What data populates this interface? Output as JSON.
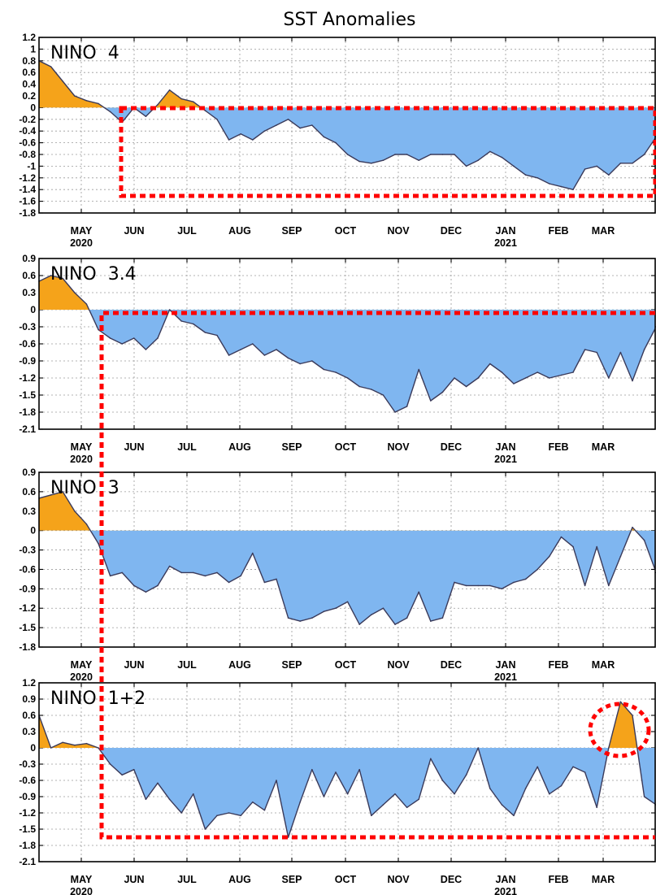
{
  "title": "SST Anomalies",
  "colors": {
    "positive_fill": "#f5a31a",
    "negative_fill": "#7fb6f0",
    "line": "#3a3a5a",
    "highlight": "#ff0000"
  },
  "x_axis": {
    "months": [
      "MAY",
      "JUN",
      "JUL",
      "AUG",
      "SEP",
      "OCT",
      "NOV",
      "DEC",
      "JAN",
      "FEB",
      "MAR"
    ],
    "years": [
      {
        "month": "MAY",
        "label": "2020"
      },
      {
        "month": "JAN",
        "label": "2021"
      }
    ]
  },
  "chart_data": [
    {
      "type": "area",
      "label": "NINO  4",
      "yticks": [
        "1.2",
        "1",
        "0.8",
        "0.6",
        "0.4",
        "0.2",
        "0",
        "-0.2",
        "-0.4",
        "-0.6",
        "-0.8",
        "-1",
        "-1.2",
        "-1.4",
        "-1.6",
        "-1.8"
      ],
      "ylim": [
        -1.8,
        1.2
      ],
      "x_unit": "weeks from 1 Apr 2020",
      "x": [
        0,
        1,
        2,
        3,
        4,
        5,
        6,
        7,
        8,
        9,
        10,
        11,
        12,
        13,
        14,
        15,
        16,
        17,
        18,
        19,
        20,
        21,
        22,
        23,
        24,
        25,
        26,
        27,
        28,
        29,
        30,
        31,
        32,
        33,
        34,
        35,
        36,
        37,
        38,
        39,
        40,
        41,
        42,
        43,
        44,
        45,
        46,
        47,
        48,
        49,
        50,
        51,
        52
      ],
      "values": [
        0.8,
        0.7,
        0.45,
        0.2,
        0.12,
        0.07,
        -0.07,
        -0.25,
        0,
        -0.15,
        0.05,
        0.3,
        0.15,
        0.1,
        -0.05,
        -0.2,
        -0.55,
        -0.45,
        -0.55,
        -0.4,
        -0.3,
        -0.2,
        -0.35,
        -0.3,
        -0.5,
        -0.6,
        -0.8,
        -0.92,
        -0.95,
        -0.9,
        -0.8,
        -0.8,
        -0.9,
        -0.8,
        -0.8,
        -0.8,
        -1.0,
        -0.9,
        -0.75,
        -0.85,
        -1.0,
        -1.15,
        -1.2,
        -1.3,
        -1.35,
        -1.4,
        -1.05,
        -1.0,
        -1.15,
        -0.95,
        -0.95,
        -0.8,
        -0.5
      ]
    },
    {
      "type": "area",
      "label": "NINO  3.4",
      "yticks": [
        "0.9",
        "0.6",
        "0.3",
        "0",
        "-0.3",
        "-0.6",
        "-0.9",
        "-1.2",
        "-1.5",
        "-1.8",
        "-2.1"
      ],
      "ylim": [
        -2.1,
        0.9
      ],
      "x_unit": "weeks from 1 Apr 2020",
      "x": [
        0,
        1,
        2,
        3,
        4,
        5,
        6,
        7,
        8,
        9,
        10,
        11,
        12,
        13,
        14,
        15,
        16,
        17,
        18,
        19,
        20,
        21,
        22,
        23,
        24,
        25,
        26,
        27,
        28,
        29,
        30,
        31,
        32,
        33,
        34,
        35,
        36,
        37,
        38,
        39,
        40,
        41,
        42,
        43,
        44,
        45,
        46,
        47,
        48,
        49,
        50,
        51,
        52
      ],
      "values": [
        0.5,
        0.6,
        0.55,
        0.3,
        0.1,
        -0.35,
        -0.5,
        -0.6,
        -0.5,
        -0.7,
        -0.5,
        0.0,
        -0.2,
        -0.25,
        -0.4,
        -0.45,
        -0.8,
        -0.7,
        -0.6,
        -0.8,
        -0.7,
        -0.85,
        -0.95,
        -0.9,
        -1.05,
        -1.1,
        -1.2,
        -1.35,
        -1.4,
        -1.5,
        -1.8,
        -1.7,
        -1.05,
        -1.6,
        -1.45,
        -1.2,
        -1.35,
        -1.2,
        -0.95,
        -1.1,
        -1.3,
        -1.2,
        -1.1,
        -1.2,
        -1.15,
        -1.1,
        -0.7,
        -0.75,
        -1.2,
        -0.75,
        -1.25,
        -0.7,
        -0.3
      ]
    },
    {
      "type": "area",
      "label": "NINO  3",
      "yticks": [
        "0.9",
        "0.6",
        "0.3",
        "0",
        "-0.3",
        "-0.6",
        "-0.9",
        "-1.2",
        "-1.5",
        "-1.8"
      ],
      "ylim": [
        -1.8,
        0.9
      ],
      "x_unit": "weeks from 1 Apr 2020",
      "x": [
        0,
        1,
        2,
        3,
        4,
        5,
        6,
        7,
        8,
        9,
        10,
        11,
        12,
        13,
        14,
        15,
        16,
        17,
        18,
        19,
        20,
        21,
        22,
        23,
        24,
        25,
        26,
        27,
        28,
        29,
        30,
        31,
        32,
        33,
        34,
        35,
        36,
        37,
        38,
        39,
        40,
        41,
        42,
        43,
        44,
        45,
        46,
        47,
        48,
        49,
        50,
        51,
        52
      ],
      "values": [
        0.5,
        0.55,
        0.6,
        0.3,
        0.1,
        -0.2,
        -0.7,
        -0.65,
        -0.85,
        -0.95,
        -0.85,
        -0.55,
        -0.65,
        -0.65,
        -0.7,
        -0.65,
        -0.8,
        -0.7,
        -0.35,
        -0.8,
        -0.75,
        -1.35,
        -1.4,
        -1.35,
        -1.25,
        -1.2,
        -1.1,
        -1.45,
        -1.3,
        -1.2,
        -1.45,
        -1.35,
        -0.95,
        -1.4,
        -1.35,
        -0.8,
        -0.85,
        -0.85,
        -0.85,
        -0.9,
        -0.8,
        -0.75,
        -0.6,
        -0.4,
        -0.1,
        -0.25,
        -0.85,
        -0.25,
        -0.85,
        -0.4,
        0.05,
        -0.15,
        -0.65
      ]
    },
    {
      "type": "area",
      "label": "NINO  1+2",
      "yticks": [
        "1.2",
        "0.9",
        "0.6",
        "0.3",
        "0",
        "-0.3",
        "-0.6",
        "-0.9",
        "-1.2",
        "-1.5",
        "-1.8",
        "-2.1"
      ],
      "ylim": [
        -2.1,
        1.2
      ],
      "x_unit": "weeks from 1 Apr 2020",
      "x": [
        0,
        1,
        2,
        3,
        4,
        5,
        6,
        7,
        8,
        9,
        10,
        11,
        12,
        13,
        14,
        15,
        16,
        17,
        18,
        19,
        20,
        21,
        22,
        23,
        24,
        25,
        26,
        27,
        28,
        29,
        30,
        31,
        32,
        33,
        34,
        35,
        36,
        37,
        38,
        39,
        40,
        41,
        42,
        43,
        44,
        45,
        46,
        47,
        48,
        49,
        50,
        51,
        52
      ],
      "values": [
        0.6,
        0.0,
        0.1,
        0.05,
        0.08,
        0.0,
        -0.3,
        -0.5,
        -0.4,
        -0.95,
        -0.65,
        -0.95,
        -1.2,
        -0.85,
        -1.5,
        -1.25,
        -1.2,
        -1.25,
        -1.0,
        -1.15,
        -0.6,
        -1.65,
        -1.0,
        -0.4,
        -0.9,
        -0.45,
        -0.85,
        -0.4,
        -1.25,
        -1.05,
        -0.85,
        -1.1,
        -0.95,
        -0.2,
        -0.6,
        -0.85,
        -0.5,
        0.0,
        -0.75,
        -1.05,
        -1.25,
        -0.75,
        -0.35,
        -0.85,
        -0.7,
        -0.35,
        -0.45,
        -1.1,
        0.0,
        0.85,
        0.6,
        -0.9,
        -1.05
      ]
    }
  ]
}
